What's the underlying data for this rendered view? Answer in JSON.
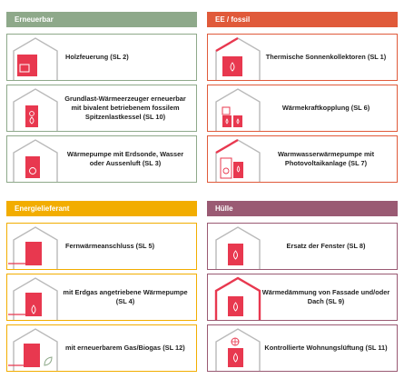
{
  "colors": {
    "green": "#8ea98a",
    "orange": "#e05a3a",
    "yellow": "#f2ad00",
    "mauve": "#9a5a73",
    "red": "#e8384f",
    "house": "#b9b9b9"
  },
  "sections": [
    {
      "title": "Erneuerbar",
      "accent": "green",
      "cards": [
        {
          "label": "Holzfeuerung (SL 2)",
          "icon": "wood-stove-icon"
        },
        {
          "label": "Grundlast-Wärmeerzeuger erneuerbar mit bivalent betriebenem fossilem Spitzenlastkessel (SL 10)",
          "icon": "flame-icon"
        },
        {
          "label": "Wärmepumpe mit Erdsonde, Wasser oder Aussenluft (SL 3)",
          "icon": "heat-pump-icon"
        }
      ]
    },
    {
      "title": "EE / fossil",
      "accent": "orange",
      "cards": [
        {
          "label": "Thermische Sonnenkollektoren (SL 1)",
          "icon": "solar-collector-icon"
        },
        {
          "label": "Wärmekraftkopplung (SL 6)",
          "icon": "chp-icon"
        },
        {
          "label": "Warmwasserwärmepumpe mit Photovoltaikanlage (SL 7)",
          "icon": "pv-heat-pump-icon"
        }
      ]
    },
    {
      "title": "Energielieferant",
      "accent": "yellow",
      "cards": [
        {
          "label": "Fernwärmeanschluss (SL 5)",
          "icon": "district-heating-icon"
        },
        {
          "label": "mit Erdgas angetriebene Wärmepumpe (SL 4)",
          "icon": "gas-heat-pump-icon"
        },
        {
          "label": "mit erneuerbarem Gas/Biogas (SL 12)",
          "icon": "biogas-leaf-icon"
        }
      ]
    },
    {
      "title": "Hülle",
      "accent": "mauve",
      "cards": [
        {
          "label": "Ersatz der Fenster (SL 8)",
          "icon": "window-flame-icon"
        },
        {
          "label": "Wärmedämmung von Fassade und/oder Dach (SL 9)",
          "icon": "insulation-icon"
        },
        {
          "label": "Kontrollierte Wohnungslüftung  (SL 11)",
          "icon": "ventilation-fan-icon"
        }
      ]
    }
  ]
}
